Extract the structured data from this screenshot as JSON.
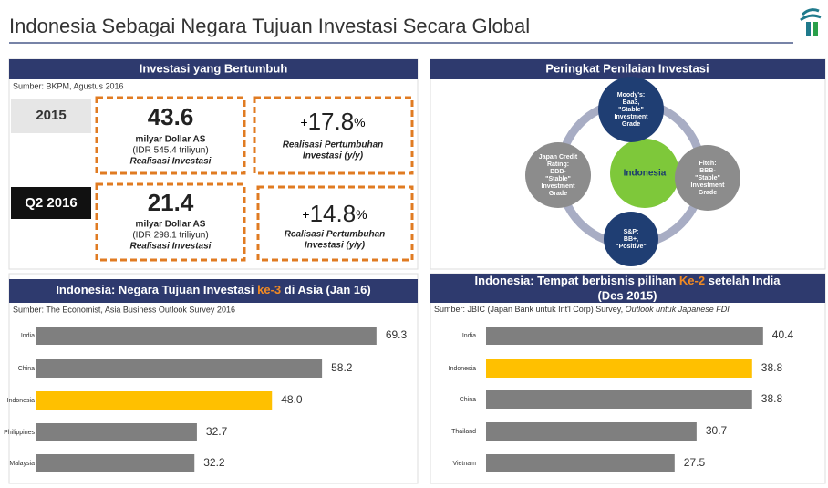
{
  "header": {
    "title": "Indonesia Sebagai Negara Tujuan Investasi Secara Global"
  },
  "growth_panel": {
    "title": "Investasi yang Bertumbuh",
    "source": "Sumber: BKPM, Agustus 2016",
    "rows": [
      {
        "period": "2015",
        "amount": "43.6",
        "unit": "milyar Dollar AS",
        "idr": "(IDR 545.4 triliyun)",
        "caption": "Realisasi Investasi",
        "growth_sign": "+",
        "growth": "17.8",
        "growth_unit": "%",
        "growth_caption": [
          "Realisasi Pertumbuhan",
          "Investasi (y/y)"
        ]
      },
      {
        "period": "Q2 2016",
        "amount": "21.4",
        "unit": "milyar Dollar AS",
        "idr": "(IDR 298.1 triliyun)",
        "caption": "Realisasi Investasi",
        "growth_sign": "+",
        "growth": "14.8",
        "growth_unit": "%",
        "growth_caption": [
          "Realisasi Pertumbuhan",
          "Investasi (y/y)"
        ]
      }
    ]
  },
  "rating_panel": {
    "title": "Peringkat Penilaian Investasi",
    "center": "Indonesia",
    "nodes": [
      {
        "lines": [
          "Moody's:",
          "Baa3,",
          "\"Stable\"",
          "Investment",
          "Grade"
        ]
      },
      {
        "lines": [
          "Fitch:",
          "BBB-",
          "\"Stable\"",
          "Investment",
          "Grade"
        ]
      },
      {
        "lines": [
          "S&P:",
          "BB+,",
          "\"Positive\""
        ]
      },
      {
        "lines": [
          "Japan Credit",
          "Rating:",
          "BBB-",
          "\"Stable\"",
          "Investment",
          "Grade"
        ]
      }
    ]
  },
  "chart_data": [
    {
      "type": "bar",
      "orientation": "horizontal",
      "title": [
        "Indonesia: Negara Tujuan Investasi ",
        "ke-3",
        " di Asia (Jan 16)"
      ],
      "source": "Sumber: The Economist, Asia Business Outlook Survey 2016",
      "categories": [
        "India",
        "China",
        "Indonesia",
        "Philippines",
        "Malaysia"
      ],
      "values": [
        69.3,
        58.2,
        48.0,
        32.7,
        32.2
      ],
      "value_labels": [
        "69.3",
        "58.2",
        "48.0",
        "32.7",
        "32.2"
      ],
      "colors": [
        "#7f7f7f",
        "#7f7f7f",
        "#ffc000",
        "#7f7f7f",
        "#7f7f7f"
      ]
    },
    {
      "type": "bar",
      "orientation": "horizontal",
      "title": [
        "Indonesia: Tempat berbisnis pilihan ",
        "Ke-2",
        " setelah India",
        "(Des 2015)"
      ],
      "source": [
        "Sumber: JBIC (Japan Bank untuk Int'l Corp) Survey, ",
        "Outlook untuk Japanese FDI"
      ],
      "categories": [
        "India",
        "Indonesia",
        "China",
        "Thailand",
        "Vietnam"
      ],
      "values": [
        40.4,
        38.8,
        38.8,
        30.7,
        27.5
      ],
      "value_labels": [
        "40.4",
        "38.8",
        "38.8",
        "30.7",
        "27.5"
      ],
      "colors": [
        "#7f7f7f",
        "#ffc000",
        "#7f7f7f",
        "#7f7f7f",
        "#7f7f7f"
      ]
    }
  ]
}
